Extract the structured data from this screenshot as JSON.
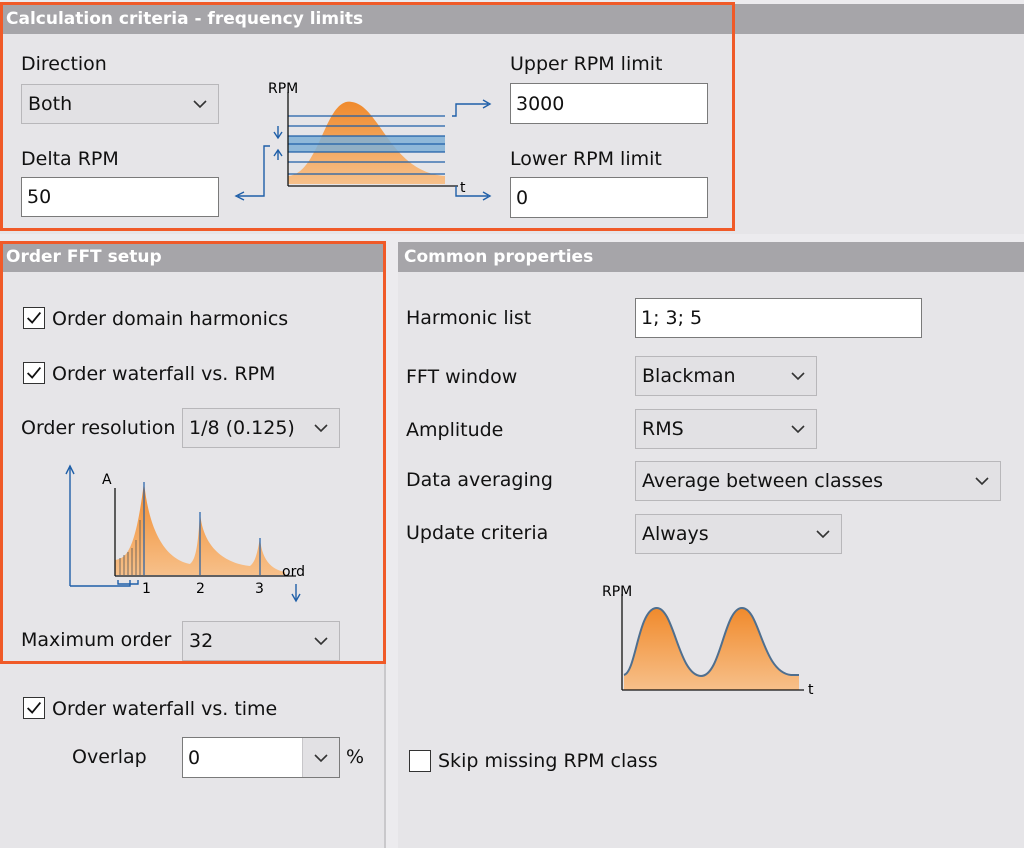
{
  "calc_criteria": {
    "title": "Calculation criteria - frequency limits",
    "direction_label": "Direction",
    "direction_value": "Both",
    "delta_rpm_label": "Delta RPM",
    "delta_rpm_value": "50",
    "upper_rpm_label": "Upper RPM limit",
    "upper_rpm_value": "3000",
    "lower_rpm_label": "Lower RPM limit",
    "lower_rpm_value": "0",
    "diagram_y_label": "RPM",
    "diagram_x_label": "t"
  },
  "order_fft": {
    "title": "Order FFT setup",
    "order_domain_harmonics_label": "Order domain harmonics",
    "order_domain_harmonics_checked": true,
    "order_waterfall_rpm_label": "Order waterfall vs. RPM",
    "order_waterfall_rpm_checked": true,
    "order_resolution_label": "Order resolution",
    "order_resolution_value": "1/8 (0.125)",
    "diagram_y_label": "A",
    "diagram_x_label": "ord",
    "diagram_ticks": [
      "1",
      "2",
      "3"
    ],
    "maximum_order_label": "Maximum order",
    "maximum_order_value": "32"
  },
  "order_waterfall_time": {
    "label": "Order waterfall vs. time",
    "checked": true,
    "overlap_label": "Overlap",
    "overlap_value": "0",
    "overlap_unit": "%"
  },
  "common": {
    "title": "Common properties",
    "harmonic_list_label": "Harmonic list",
    "harmonic_list_value": "1; 3; 5",
    "fft_window_label": "FFT window",
    "fft_window_value": "Blackman",
    "amplitude_label": "Amplitude",
    "amplitude_value": "RMS",
    "data_averaging_label": "Data averaging",
    "data_averaging_value": "Average between classes",
    "update_criteria_label": "Update criteria",
    "update_criteria_value": "Always",
    "diagram_y_label": "RPM",
    "diagram_x_label": "t",
    "skip_missing_label": "Skip missing RPM class",
    "skip_missing_checked": false
  },
  "colors": {
    "highlight": "#f05a28",
    "header_bg": "#a6a5a9",
    "curve_fill": "#f0a050",
    "arrow_blue": "#1f5fa8"
  }
}
